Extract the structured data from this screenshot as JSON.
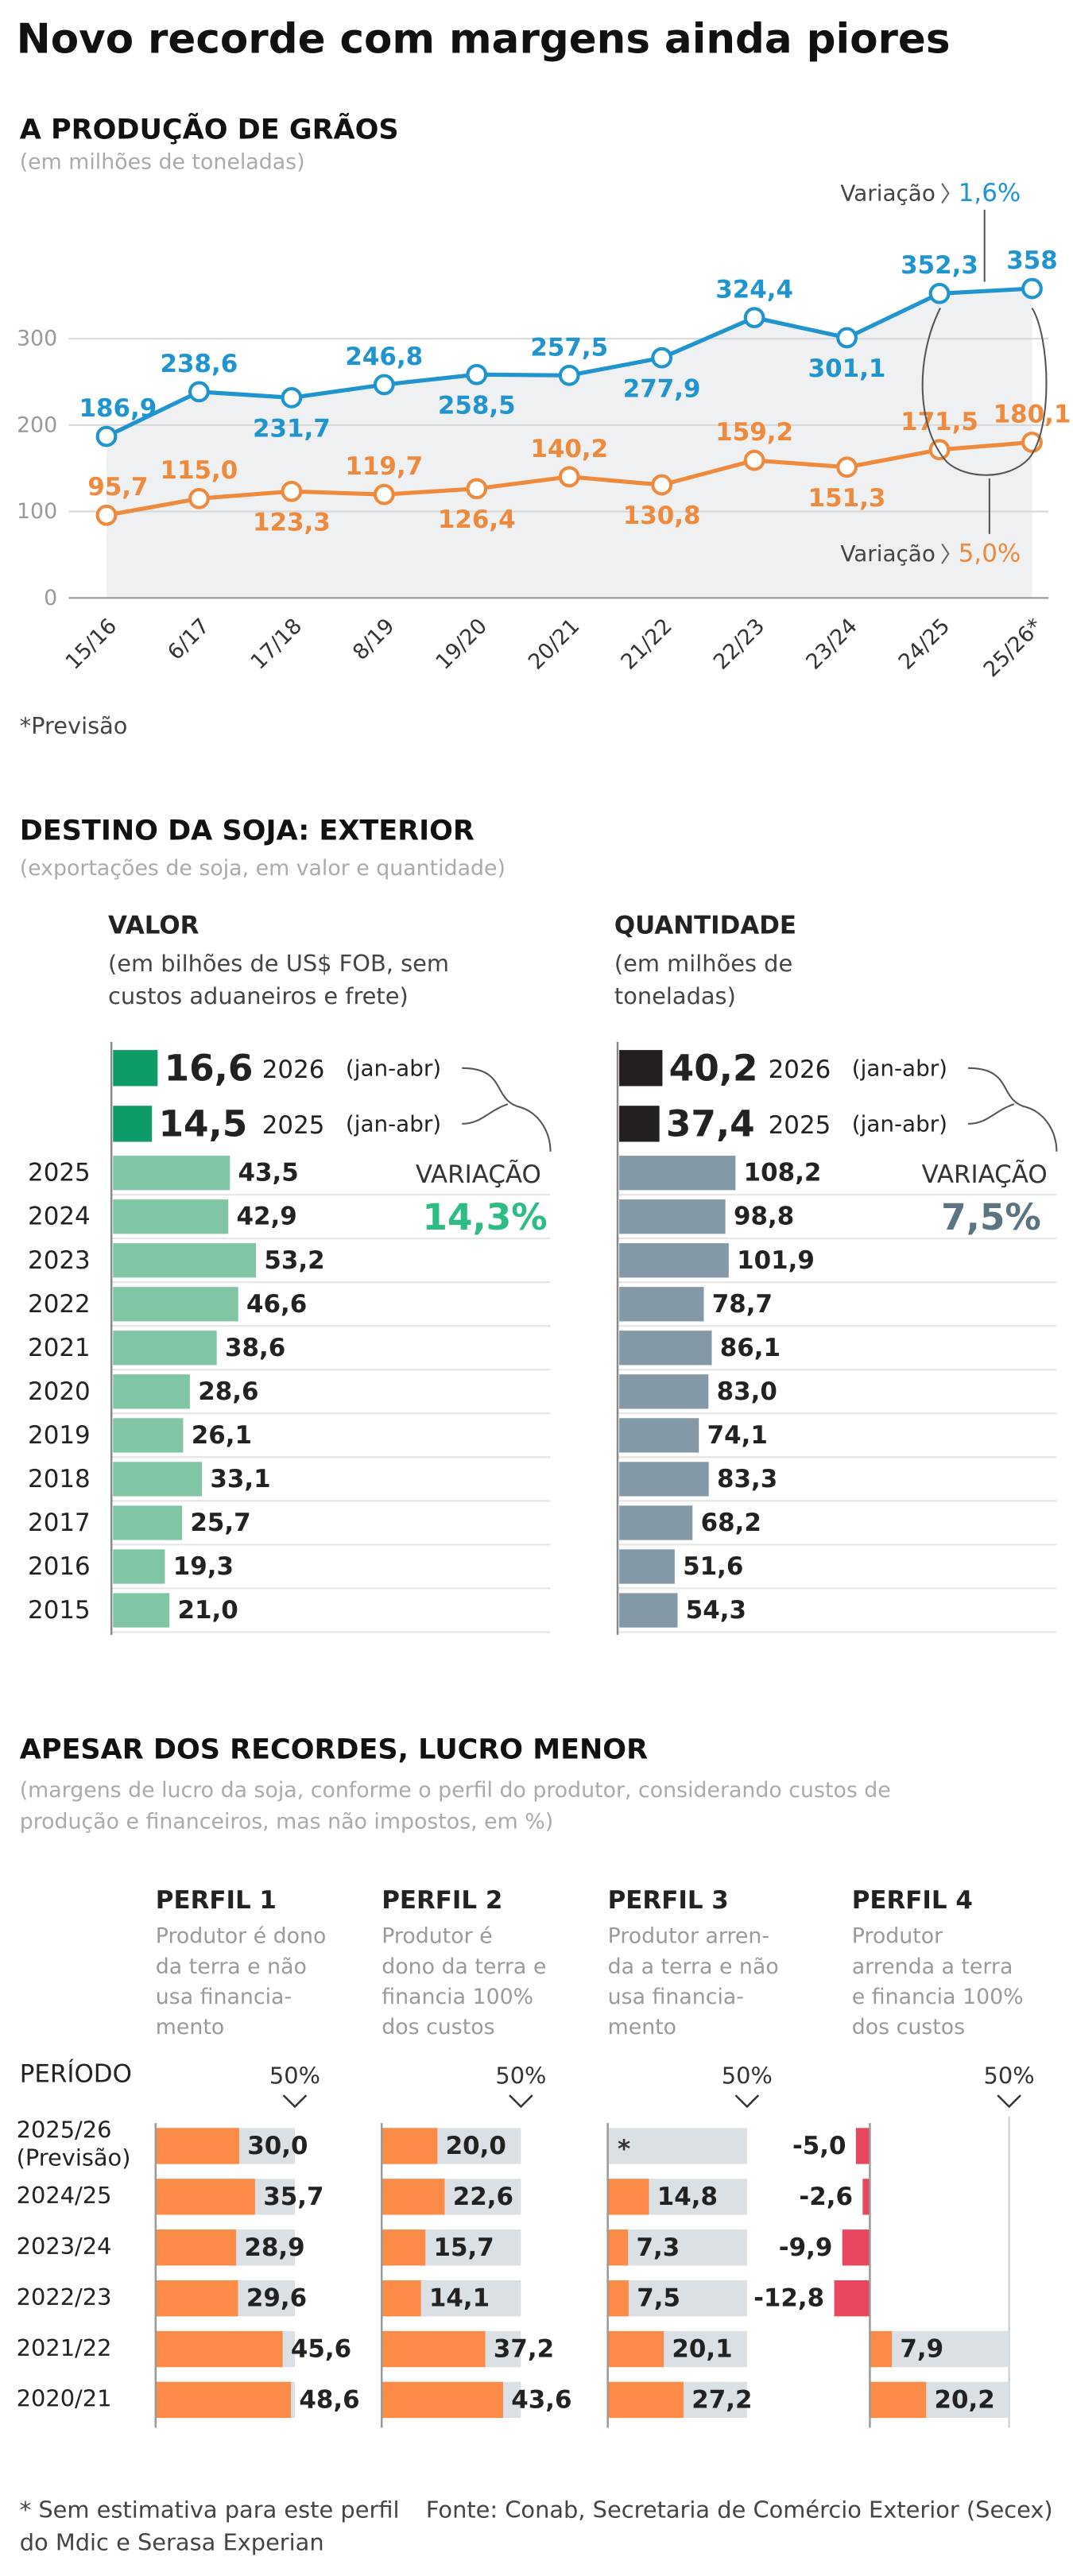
{
  "title": "Novo recorde com margens ainda piores",
  "chart_data": [
    {
      "type": "line",
      "title": "A PRODUÇÃO DE GRÃOS",
      "subtitle": "(em milhões de toneladas)",
      "categories": [
        "15/16",
        "6/17",
        "17/18",
        "8/19",
        "19/20",
        "20/21",
        "21/22",
        "22/23",
        "23/24",
        "24/25",
        "25/26*"
      ],
      "series": [
        {
          "color": "#1f94cf",
          "values": [
            186.9,
            238.6,
            231.7,
            246.8,
            258.5,
            257.5,
            277.9,
            324.4,
            301.1,
            352.3,
            358
          ],
          "value_labels": [
            "186,9",
            "238,6",
            "231,7",
            "246,8",
            "258,5",
            "257,5",
            "277,9",
            "324,4",
            "301,1",
            "352,3",
            "358"
          ]
        },
        {
          "color": "#ef8a3c",
          "values": [
            95.7,
            115.0,
            123.3,
            119.7,
            126.4,
            140.2,
            130.8,
            159.2,
            151.3,
            171.5,
            180.1
          ],
          "value_labels": [
            "95,7",
            "115,0",
            "123,3",
            "119,7",
            "126,4",
            "140,2",
            "130,8",
            "159,2",
            "151,3",
            "171,5",
            "180,1"
          ]
        }
      ],
      "ylim": [
        0,
        400
      ],
      "yticks": [
        0,
        100,
        200,
        300
      ],
      "grid": true,
      "area_color": "#eef0f2",
      "annotations": [
        {
          "text": "Variação",
          "label": "1,6%",
          "color": "#1f94cf"
        },
        {
          "text": "Variação",
          "label": "5,0%",
          "color": "#ef8a3c"
        }
      ],
      "note": "*Previsão"
    },
    {
      "type": "bar",
      "orientation": "horizontal",
      "title": "DESTINO DA SOJA: EXTERIOR",
      "subtitle": "(exportações de soja, em valor e quantidade)",
      "categories": [
        "2025",
        "2024",
        "2023",
        "2022",
        "2021",
        "2020",
        "2019",
        "2018",
        "2017",
        "2016",
        "2015"
      ],
      "series": [
        {
          "name": "VALOR",
          "subtitle": [
            "(em bilhões de US$ FOB, sem",
            "custos aduaneiros e frete)"
          ],
          "color": "#80c6a5",
          "values": [
            43.5,
            42.9,
            53.2,
            46.6,
            38.6,
            28.6,
            26.1,
            33.1,
            25.7,
            19.3,
            21.0
          ],
          "value_labels": [
            "43,5",
            "42,9",
            "53,2",
            "46,6",
            "38,6",
            "28,6",
            "26,1",
            "33,1",
            "25,7",
            "19,3",
            "21,0"
          ],
          "highlight_color": "#0d9b68",
          "highlights": [
            {
              "label": "2026",
              "note": "(jan-abr)",
              "value": 16.6,
              "value_label": "16,6"
            },
            {
              "label": "2025",
              "note": "(jan-abr)",
              "value": 14.5,
              "value_label": "14,5"
            }
          ],
          "variation": {
            "label": "VARIAÇÃO",
            "value_label": "14,3%",
            "color": "#2dbd84"
          }
        },
        {
          "name": "QUANTIDADE",
          "subtitle": [
            "(em milhões de",
            "toneladas)"
          ],
          "color": "#8399a7",
          "values": [
            108.2,
            98.8,
            101.9,
            78.7,
            86.1,
            83.0,
            74.1,
            83.3,
            68.2,
            51.6,
            54.3
          ],
          "value_labels": [
            "108,2",
            "98,8",
            "101,9",
            "78,7",
            "86,1",
            "83,0",
            "74,1",
            "83,3",
            "68,2",
            "51,6",
            "54,3"
          ],
          "highlight_color": "#231f20",
          "highlights": [
            {
              "label": "2026",
              "note": "(jan-abr)",
              "value": 40.2,
              "value_label": "40,2"
            },
            {
              "label": "2025",
              "note": "(jan-abr)",
              "value": 37.4,
              "value_label": "37,4"
            }
          ],
          "variation": {
            "label": "VARIAÇÃO",
            "value_label": "7,5%",
            "color": "#5b7482"
          }
        }
      ]
    },
    {
      "type": "bar",
      "orientation": "horizontal",
      "title": "APESAR DOS RECORDES, LUCRO MENOR",
      "subtitle": [
        "(margens de lucro da soja, conforme o perfil do produtor, considerando custos de",
        "produção e financeiros, mas não impostos, em %)"
      ],
      "category_title": "PERÍODO",
      "categories": [
        "2025/26 (Previsão)",
        "2024/25",
        "2023/24",
        "2022/23",
        "2021/22",
        "2020/21"
      ],
      "xlim": [
        0,
        50
      ],
      "xticks": [
        {
          "value": 50,
          "label": "50%"
        }
      ],
      "color": "#fb8b46",
      "negative_color": "#e8475f",
      "background_color": "#dbe0e4",
      "series": [
        {
          "name": "PERFIL 1",
          "description": [
            "Produtor é dono",
            "da terra e não",
            "usa financia-",
            "mento"
          ],
          "values": [
            30.0,
            35.7,
            28.9,
            29.6,
            45.6,
            48.6
          ],
          "value_labels": [
            "30,0",
            "35,7",
            "28,9",
            "29,6",
            "45,6",
            "48,6"
          ]
        },
        {
          "name": "PERFIL 2",
          "description": [
            "Produtor é",
            "dono da terra e",
            "financia 100%",
            "dos custos"
          ],
          "values": [
            20.0,
            22.6,
            15.7,
            14.1,
            37.2,
            43.6
          ],
          "value_labels": [
            "20,0",
            "22,6",
            "15,7",
            "14,1",
            "37,2",
            "43,6"
          ]
        },
        {
          "name": "PERFIL 3",
          "description": [
            "Produtor arren-",
            "da a terra e não",
            "usa financia-",
            "mento"
          ],
          "values": [
            null,
            14.8,
            7.3,
            7.5,
            20.1,
            27.2
          ],
          "value_labels": [
            "*",
            "14,8",
            "7,3",
            "7,5",
            "20,1",
            "27,2"
          ]
        },
        {
          "name": "PERFIL 4",
          "description": [
            "Produtor",
            "arrenda a terra",
            "e financia 100%",
            "dos custos"
          ],
          "values": [
            -5.0,
            -2.6,
            -9.9,
            -12.8,
            7.9,
            20.2
          ],
          "value_labels": [
            "-5,0",
            "-2,6",
            "-9,9",
            "-12,8",
            "7,9",
            "20,2"
          ]
        }
      ]
    }
  ],
  "footnote": "* Sem estimativa para este perfil",
  "source": [
    "Fonte: Conab, Secretaria de Comércio Exterior (Secex)",
    "do Mdic e Serasa Experian"
  ]
}
